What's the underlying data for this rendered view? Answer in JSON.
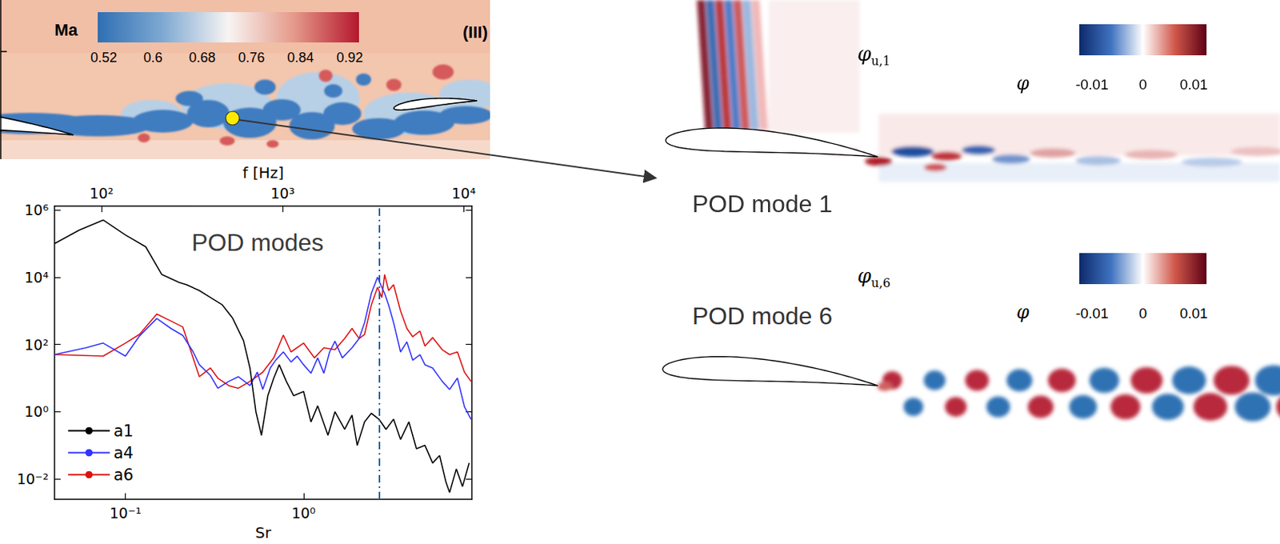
{
  "chart_data": {
    "type": "line",
    "log": true,
    "grid": false,
    "legend": "lower left",
    "xlabel": "Sr",
    "x2label": "f [Hz]",
    "xlim": [
      0.04,
      8.8
    ],
    "xticks": [
      {
        "value": 0.1,
        "label": "10⁻¹"
      },
      {
        "value": 1,
        "label": "10⁰"
      }
    ],
    "x2lim": [
      55,
      11100
    ],
    "x2ticks": [
      {
        "value": 100,
        "label": "10²"
      },
      {
        "value": 1000,
        "label": "10³"
      },
      {
        "value": 10000,
        "label": "10⁴"
      }
    ],
    "ylim": [
      0.0025,
      1300000
    ],
    "yticks": [
      {
        "value": 0.01,
        "label": "10⁻²"
      },
      {
        "value": 1,
        "label": "10⁰"
      },
      {
        "value": 100,
        "label": "10²"
      },
      {
        "value": 10000,
        "label": "10⁴"
      },
      {
        "value": 1000000,
        "label": "10⁶"
      }
    ],
    "annotations": [
      "POD modes"
    ],
    "vline": {
      "x": 2.65,
      "color": "#1f5fa8",
      "line_style": "dashdot"
    },
    "series": [
      {
        "name": "a1",
        "color": "#000000",
        "x": [
          0.04,
          0.055,
          0.075,
          0.1,
          0.13,
          0.16,
          0.2,
          0.22,
          0.26,
          0.3,
          0.35,
          0.4,
          0.46,
          0.5,
          0.54,
          0.58,
          0.63,
          0.68,
          0.73,
          0.8,
          0.88,
          1.0,
          1.1,
          1.2,
          1.37,
          1.5,
          1.7,
          1.87,
          2.0,
          2.2,
          2.4,
          2.65,
          2.9,
          3.2,
          3.5,
          3.9,
          4.3,
          4.8,
          5.3,
          5.8,
          6.3,
          6.6,
          7.2,
          7.8,
          8.5
        ],
        "values": [
          100000,
          250000,
          500000,
          180000,
          80000,
          12000,
          7000,
          6000,
          4000,
          2500,
          1500,
          600,
          130,
          20,
          1,
          0.2,
          3,
          10,
          25,
          8,
          3,
          4,
          0.5,
          1.5,
          0.2,
          1,
          0.3,
          0.8,
          0.1,
          0.5,
          0.9,
          0.6,
          0.3,
          0.6,
          0.15,
          0.5,
          0.08,
          0.1,
          0.03,
          0.05,
          0.008,
          0.004,
          0.02,
          0.006,
          0.03
        ]
      },
      {
        "name": "a4",
        "color": "#3333ff",
        "x": [
          0.04,
          0.06,
          0.075,
          0.1,
          0.12,
          0.15,
          0.18,
          0.21,
          0.24,
          0.26,
          0.3,
          0.33,
          0.38,
          0.43,
          0.5,
          0.55,
          0.59,
          0.65,
          0.7,
          0.77,
          0.85,
          0.92,
          1.0,
          1.1,
          1.2,
          1.3,
          1.4,
          1.5,
          1.65,
          1.87,
          2.05,
          2.2,
          2.4,
          2.6,
          2.75,
          2.85,
          3.0,
          3.2,
          3.5,
          3.8,
          4.1,
          4.5,
          4.8,
          5.3,
          6.0,
          6.6,
          7.3,
          8.0,
          8.7
        ],
        "values": [
          50,
          80,
          110,
          45,
          180,
          590,
          300,
          185,
          60,
          25,
          12,
          5,
          8,
          11,
          6,
          15,
          4.6,
          20,
          35,
          60,
          30,
          45,
          25,
          14,
          40,
          14,
          60,
          125,
          40,
          80,
          150,
          450,
          3300,
          10000,
          5000,
          3300,
          1500,
          450,
          60,
          120,
          34,
          50,
          25,
          20,
          8,
          4.6,
          10,
          1.4,
          0.6
        ]
      },
      {
        "name": "a6",
        "color": "#dd1111",
        "x": [
          0.04,
          0.075,
          0.1,
          0.12,
          0.15,
          0.18,
          0.21,
          0.26,
          0.3,
          0.33,
          0.38,
          0.43,
          0.5,
          0.59,
          0.68,
          0.77,
          0.85,
          1.0,
          1.15,
          1.3,
          1.5,
          1.7,
          1.87,
          2.05,
          2.2,
          2.4,
          2.6,
          2.75,
          2.85,
          3.0,
          3.2,
          3.5,
          3.8,
          4.1,
          4.5,
          4.8,
          5.3,
          6.0,
          6.6,
          7.3,
          8.0,
          8.7
        ],
        "values": [
          50,
          45,
          110,
          200,
          800,
          500,
          330,
          11,
          20,
          10,
          6,
          5,
          8,
          15,
          40,
          190,
          60,
          110,
          40,
          80,
          70,
          150,
          300,
          150,
          200,
          1500,
          5000,
          2500,
          12000,
          4000,
          6000,
          1000,
          300,
          170,
          250,
          90,
          160,
          70,
          50,
          60,
          15,
          8
        ]
      }
    ]
  },
  "figure": {
    "mach_field": {
      "colorbar": {
        "title": "Ma",
        "range": [
          0.51,
          0.935
        ],
        "ticks": [
          0.52,
          0.6,
          0.68,
          0.76,
          0.84,
          0.92
        ]
      },
      "label": "(III)"
    },
    "pod_modes": [
      {
        "title": "POD mode 1",
        "symbol": "φ",
        "subscript": "u,1",
        "colorbar": {
          "title": "φ",
          "range": [
            -0.0125,
            0.0125
          ],
          "ticks": [
            -0.01,
            0,
            0.01
          ]
        }
      },
      {
        "title": "POD mode 6",
        "symbol": "φ",
        "subscript": "u,6",
        "colorbar": {
          "title": "φ",
          "range": [
            -0.0125,
            0.0125
          ],
          "ticks": [
            -0.01,
            0,
            0.01
          ]
        }
      }
    ]
  }
}
